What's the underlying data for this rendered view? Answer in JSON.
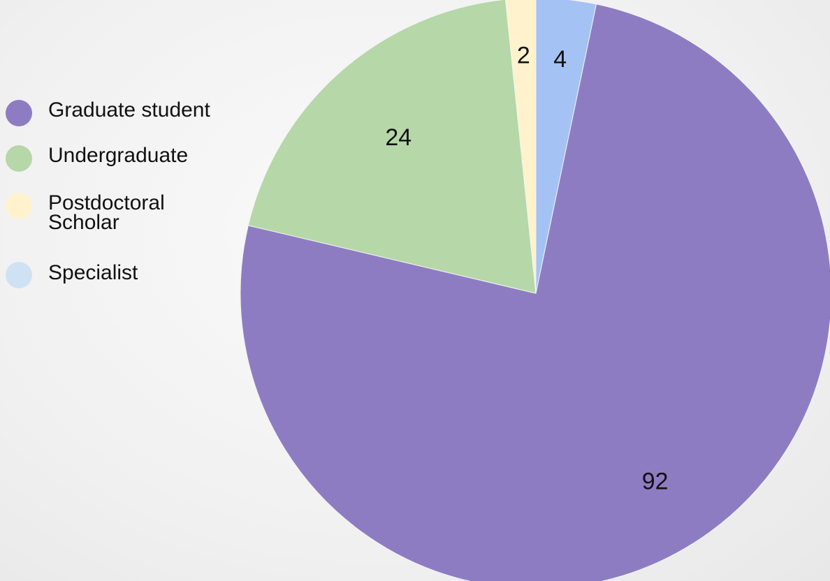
{
  "chart_data": {
    "type": "pie",
    "title": "",
    "slices": [
      {
        "label": "Specialist",
        "value": 4,
        "color": "#a4c2f4"
      },
      {
        "label": "Graduate student",
        "value": 92,
        "color": "#8e7cc3"
      },
      {
        "label": "Undergraduate",
        "value": 24,
        "color": "#b6d7a8"
      },
      {
        "label": "Postdoctoral\nScholar",
        "value": 2,
        "color": "#fff2cc"
      }
    ],
    "legend": {
      "placement": "left",
      "items": [
        {
          "label": "Graduate student",
          "color": "#8e7cc3"
        },
        {
          "label": "Undergraduate",
          "color": "#b6d7a8"
        },
        {
          "label": "Postdoctoral\nScholar",
          "color": "#fff2cc"
        },
        {
          "label": "Specialist",
          "color": "#cfe2f3"
        }
      ]
    },
    "data_labels": [
      "4",
      "92",
      "24",
      "2"
    ],
    "start_angle": "12 o'clock",
    "direction": "clockwise"
  }
}
